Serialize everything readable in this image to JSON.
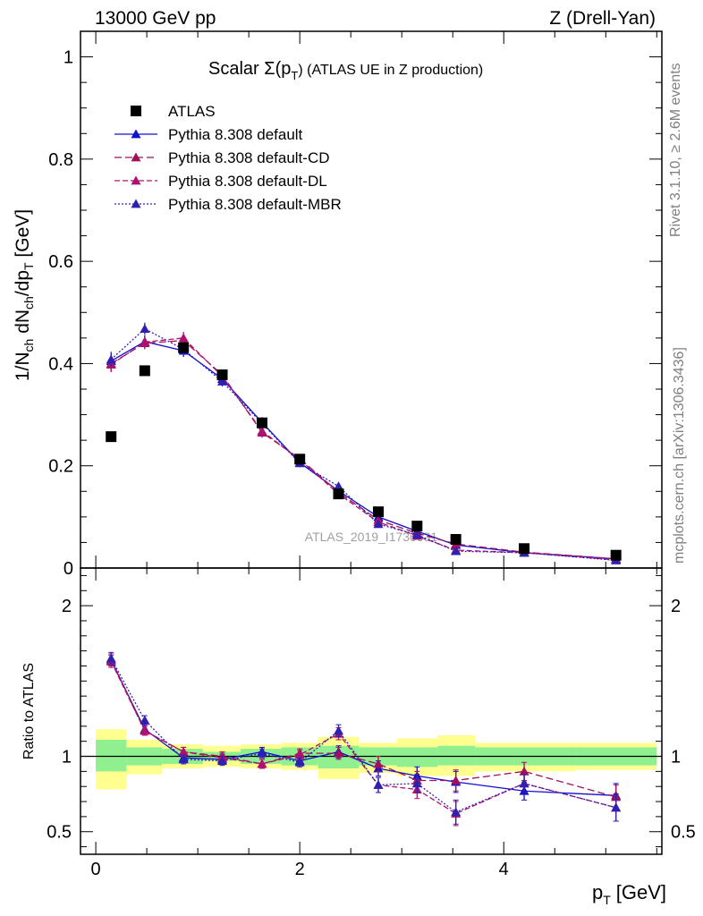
{
  "header": {
    "left": "13000 GeV pp",
    "right": "Z (Drell-Yan)"
  },
  "side_labels": {
    "rivet": "Rivet 3.1.10, ≥ 2.6M events",
    "mcplots": "mcplots.cern.ch [arXiv:1306.3436]"
  },
  "watermark": "ATLAS_2019_I1736531",
  "colors": {
    "default": "#1010d0",
    "cd": "#a0105a",
    "dl": "#b01070",
    "mbr": "#3020b0",
    "band_inner": "#90f090",
    "band_outer": "#ffff90"
  },
  "chart_data": {
    "type": "line",
    "title": "Scalar Σ(p_T) (ATLAS UE in Z production)",
    "title_main": "Scalar Σ(p",
    "title_sub": "T",
    "title_rest": ") (ATLAS UE in Z production)",
    "xlabel": "p_T [GeV]",
    "xlabel_main": "p",
    "xlabel_sub": "T",
    "xlabel_unit": "[GeV]",
    "ylabel": "1/N_ch dN_ch/dp_T [GeV]",
    "ratio_ylabel": "Ratio to ATLAS",
    "xlim": [
      -0.15,
      5.55
    ],
    "ylim": [
      0,
      1.05
    ],
    "ratio_ylim": [
      0.35,
      2.25
    ],
    "x_ticks": [
      0,
      2,
      4
    ],
    "y_ticks": [
      0,
      0.2,
      0.4,
      0.6,
      0.8,
      1
    ],
    "y_tick_labels": [
      "0",
      "0.2",
      "0.4",
      "0.6",
      "0.8",
      "1"
    ],
    "ratio_ticks": [
      0.5,
      1,
      2
    ],
    "ratio_tick_labels": [
      "0.5",
      "1",
      "2"
    ],
    "x": [
      0.15,
      0.48,
      0.86,
      1.24,
      1.63,
      2.0,
      2.38,
      2.77,
      3.15,
      3.53,
      4.2,
      5.1
    ],
    "bin_edges": [
      0.0,
      0.3,
      0.65,
      1.05,
      1.42,
      1.82,
      2.18,
      2.58,
      2.95,
      3.35,
      3.72,
      4.7,
      5.5
    ],
    "reference": {
      "name": "ATLAS",
      "values": [
        0.257,
        0.386,
        0.431,
        0.378,
        0.284,
        0.213,
        0.145,
        0.11,
        0.082,
        0.056,
        0.038,
        0.025
      ],
      "band_inner": [
        [
          0.9,
          1.11
        ],
        [
          0.94,
          1.06
        ],
        [
          0.95,
          1.05
        ],
        [
          0.97,
          1.03
        ],
        [
          0.95,
          1.05
        ],
        [
          0.94,
          1.06
        ],
        [
          0.92,
          1.07
        ],
        [
          0.94,
          1.06
        ],
        [
          0.93,
          1.06
        ],
        [
          0.94,
          1.07
        ],
        [
          0.94,
          1.06
        ],
        [
          0.94,
          1.06
        ]
      ],
      "band_outer": [
        [
          0.78,
          1.18
        ],
        [
          0.88,
          1.11
        ],
        [
          0.92,
          1.08
        ],
        [
          0.93,
          1.07
        ],
        [
          0.92,
          1.08
        ],
        [
          0.91,
          1.09
        ],
        [
          0.85,
          1.13
        ],
        [
          0.89,
          1.09
        ],
        [
          0.87,
          1.12
        ],
        [
          0.87,
          1.14
        ],
        [
          0.9,
          1.09
        ],
        [
          0.91,
          1.09
        ]
      ]
    },
    "series": [
      {
        "name": "Pythia 8.308 default",
        "key": "default",
        "dash": "",
        "values": [
          0.405,
          0.443,
          0.425,
          0.37,
          0.285,
          0.206,
          0.151,
          0.1,
          0.072,
          0.045,
          0.03,
          0.018
        ],
        "errors": [
          0.015,
          0.012,
          0.012,
          0.01,
          0.01,
          0.008,
          0.007,
          0.006,
          0.005,
          0.004,
          0.003,
          0.002
        ],
        "ratio": [
          1.64,
          1.18,
          0.99,
          0.98,
          1.03,
          0.97,
          1.03,
          0.92,
          0.87,
          0.83,
          0.77,
          0.74
        ],
        "ratio_errors": [
          0.04,
          0.03,
          0.03,
          0.03,
          0.03,
          0.03,
          0.04,
          0.05,
          0.06,
          0.07,
          0.06,
          0.08
        ]
      },
      {
        "name": "Pythia 8.308 default-CD",
        "key": "cd",
        "dash": "8,4",
        "values": [
          0.4,
          0.44,
          0.445,
          0.378,
          0.265,
          0.214,
          0.148,
          0.094,
          0.068,
          0.047,
          0.031,
          0.018
        ],
        "errors": [
          0.015,
          0.012,
          0.012,
          0.01,
          0.01,
          0.008,
          0.007,
          0.006,
          0.005,
          0.004,
          0.003,
          0.002
        ],
        "ratio": [
          1.64,
          1.17,
          1.03,
          1.0,
          0.95,
          1.02,
          1.02,
          0.95,
          0.84,
          0.84,
          0.9,
          0.73
        ],
        "ratio_errors": [
          0.04,
          0.03,
          0.03,
          0.03,
          0.03,
          0.03,
          0.04,
          0.05,
          0.06,
          0.07,
          0.06,
          0.08
        ]
      },
      {
        "name": "Pythia 8.308 default-DL",
        "key": "dl",
        "dash": "6,3",
        "values": [
          0.398,
          0.442,
          0.45,
          0.375,
          0.268,
          0.212,
          0.145,
          0.09,
          0.063,
          0.035,
          0.03,
          0.016
        ],
        "errors": [
          0.015,
          0.012,
          0.012,
          0.01,
          0.01,
          0.008,
          0.007,
          0.006,
          0.005,
          0.004,
          0.003,
          0.002
        ],
        "ratio": [
          1.63,
          1.17,
          1.03,
          0.99,
          0.95,
          1.01,
          1.15,
          0.81,
          0.78,
          0.62,
          0.82,
          0.66
        ],
        "ratio_errors": [
          0.04,
          0.03,
          0.03,
          0.03,
          0.03,
          0.03,
          0.04,
          0.05,
          0.06,
          0.08,
          0.06,
          0.09
        ]
      },
      {
        "name": "Pythia 8.308 default-MBR",
        "key": "mbr",
        "dash": "2,2",
        "values": [
          0.408,
          0.468,
          0.428,
          0.365,
          0.283,
          0.205,
          0.16,
          0.086,
          0.065,
          0.033,
          0.03,
          0.015
        ],
        "errors": [
          0.015,
          0.012,
          0.012,
          0.01,
          0.01,
          0.008,
          0.007,
          0.006,
          0.005,
          0.004,
          0.003,
          0.002
        ],
        "ratio": [
          1.65,
          1.24,
          0.98,
          0.97,
          1.02,
          0.96,
          1.17,
          0.81,
          0.82,
          0.63,
          0.82,
          0.66
        ],
        "ratio_errors": [
          0.04,
          0.03,
          0.03,
          0.03,
          0.03,
          0.03,
          0.04,
          0.05,
          0.06,
          0.08,
          0.06,
          0.09
        ]
      }
    ]
  }
}
